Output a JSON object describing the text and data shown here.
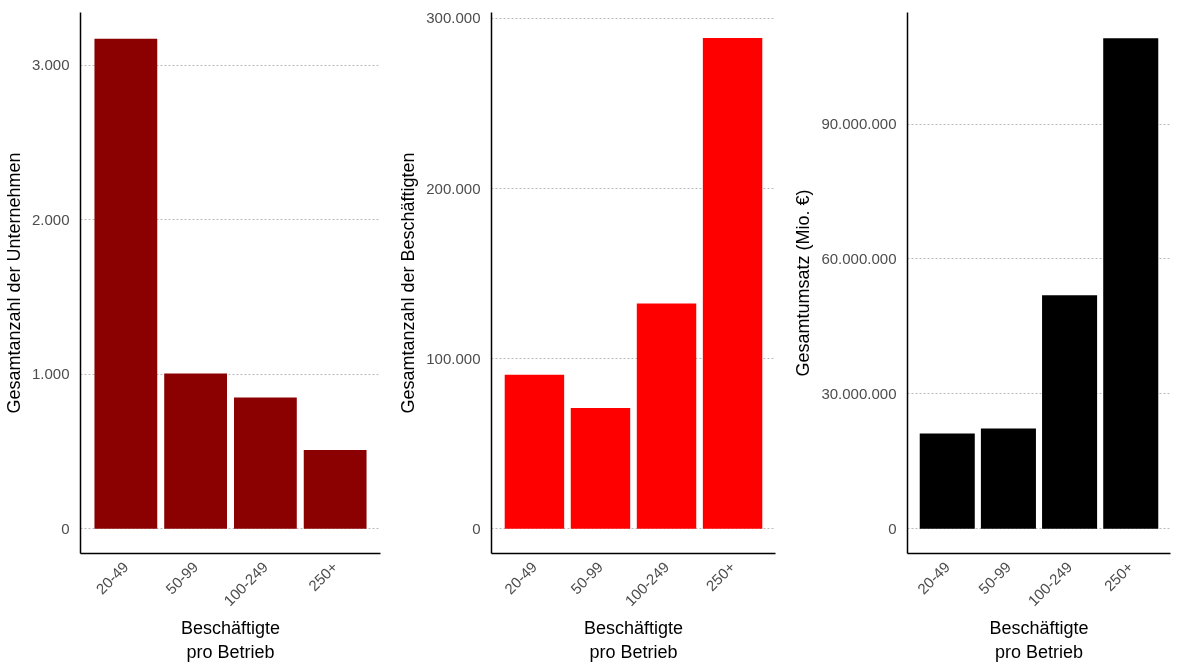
{
  "chart_data": [
    {
      "type": "bar",
      "xlabel": "Beschäftigte\npro Betrieb",
      "ylabel": "Gesamtanzahl der Unternehmen",
      "categories": [
        "20-49",
        "50-99",
        "100-249",
        "250+"
      ],
      "values": [
        3170,
        1005,
        850,
        510
      ],
      "color": "#8b0000",
      "ylim": [
        -160,
        3340
      ],
      "yticks": [
        0,
        {
          "value": 1000,
          "label": "1.000"
        },
        {
          "value": 2000,
          "label": "2.000"
        },
        {
          "value": 3000,
          "label": "3.000"
        }
      ],
      "grid": "y"
    },
    {
      "type": "bar",
      "xlabel": "Beschäftigte\npro Betrieb",
      "ylabel": "Gesamtanzahl der Beschäftigten",
      "categories": [
        "20-49",
        "50-99",
        "100-249",
        "250+"
      ],
      "values": [
        90500,
        71000,
        132500,
        288500
      ],
      "color": "#ff0000",
      "ylim": [
        -14500,
        303500
      ],
      "yticks": [
        0,
        {
          "value": 100000,
          "label": "100.000"
        },
        {
          "value": 200000,
          "label": "200.000"
        },
        {
          "value": 300000,
          "label": "300.000"
        }
      ],
      "grid": "y"
    },
    {
      "type": "bar",
      "xlabel": "Beschäftigte\npro Betrieb",
      "ylabel": "Gesamtumsatz (Mio. €)",
      "categories": [
        "20-49",
        "50-99",
        "100-249",
        "250+"
      ],
      "values": [
        21200000,
        22300000,
        51900000,
        109100000
      ],
      "color": "#000000",
      "ylim": [
        -5500000,
        114800000
      ],
      "yticks": [
        0,
        {
          "value": 30000000,
          "label": "30.000.000"
        },
        {
          "value": 60000000,
          "label": "60.000.000"
        },
        {
          "value": 90000000,
          "label": "90.000.000"
        }
      ],
      "grid": "y"
    }
  ]
}
